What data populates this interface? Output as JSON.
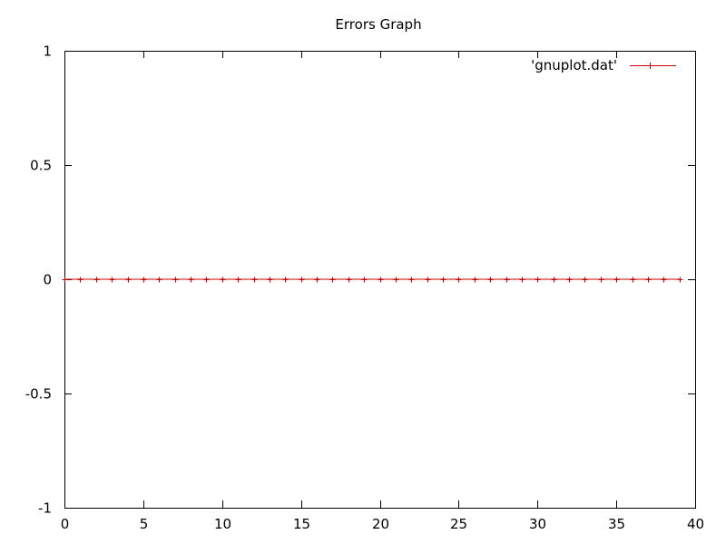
{
  "chart_data": {
    "type": "line",
    "title": "Errors Graph",
    "xlabel": "",
    "ylabel": "",
    "xlim": [
      0,
      40
    ],
    "ylim": [
      -1,
      1
    ],
    "xticks": [
      0,
      5,
      10,
      15,
      20,
      25,
      30,
      35,
      40
    ],
    "yticks": [
      -1,
      -0.5,
      0,
      0.5,
      1
    ],
    "grid": false,
    "legend_position": "top-right",
    "series": [
      {
        "name": "'gnuplot.dat'",
        "color": "#cc0000",
        "marker": "plus",
        "x": [
          0,
          1,
          2,
          3,
          4,
          5,
          6,
          7,
          8,
          9,
          10,
          11,
          12,
          13,
          14,
          15,
          16,
          17,
          18,
          19,
          20,
          21,
          22,
          23,
          24,
          25,
          26,
          27,
          28,
          29,
          30,
          31,
          32,
          33,
          34,
          35,
          36,
          37,
          38,
          39
        ],
        "y": [
          0,
          0,
          0,
          0,
          0,
          0,
          0,
          0,
          0,
          0,
          0,
          0,
          0,
          0,
          0,
          0,
          0,
          0,
          0,
          0,
          0,
          0,
          0,
          0,
          0,
          0,
          0,
          0,
          0,
          0,
          0,
          0,
          0,
          0,
          0,
          0,
          0,
          0,
          0,
          0
        ]
      }
    ]
  }
}
